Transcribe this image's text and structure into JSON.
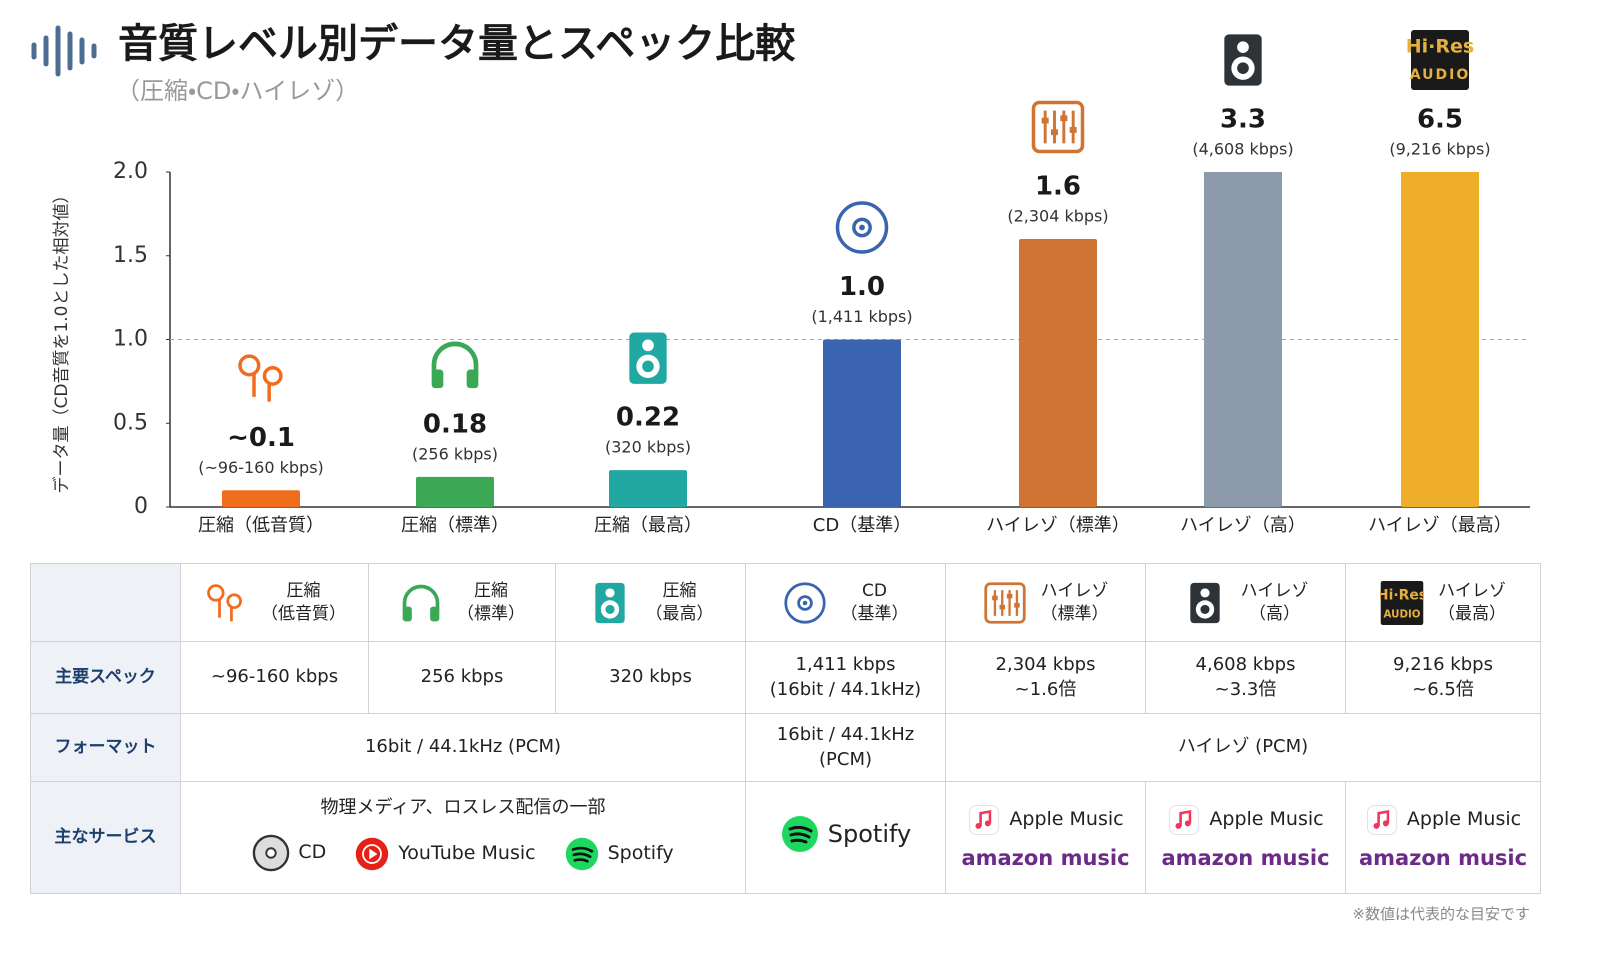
{
  "header": {
    "title": "音質レベル別データ量とスペック比較",
    "subtitle": "（圧縮・CD・ハイレゾ）"
  },
  "badge": {
    "top": "Hi·Res",
    "bottom": "AUDIO"
  },
  "chart_data": {
    "type": "bar",
    "y_label": "データ量（CD音質を1.0とした相対値）",
    "categories": [
      "圧縮（低音質）",
      "圧縮（標準）",
      "圧縮（最高）",
      "CD（基準）",
      "ハイレゾ（標準）",
      "ハイレゾ（高）",
      "ハイレゾ（最高）"
    ],
    "values": [
      0.1,
      0.18,
      0.22,
      1,
      1.6,
      3.3,
      6.5
    ],
    "value_labels": [
      "~0.1",
      "0.18",
      "0.22",
      "1.0",
      "1.6",
      "3.3",
      "6.5"
    ],
    "rates": [
      "(~96-160 kbps)",
      "(256 kbps)",
      "(320 kbps)",
      "(1,411 kbps)",
      "(2,304 kbps)",
      "(4,608 kbps)",
      "(9,216 kbps)"
    ],
    "colors": [
      "#f26c1d",
      "#3aa855",
      "#22a8a3",
      "#3a64b0",
      "#cf7433",
      "#8c9aab",
      "#eeae2a"
    ],
    "ylim": [
      0,
      2
    ],
    "yticks": [
      0,
      0.5,
      {
        "value": 1,
        "label": "1.0"
      },
      1.5,
      {
        "value": 2,
        "label": "2.0"
      }
    ],
    "reference_line": 1
  },
  "table": {
    "header": [
      [
        "圧縮",
        "（低音質）"
      ],
      [
        "圧縮",
        "（標準）"
      ],
      [
        "圧縮",
        "（最高）"
      ],
      [
        "CD",
        "（基準）"
      ],
      [
        "ハイレゾ",
        "（標準）"
      ],
      [
        "ハイレゾ",
        "（高）"
      ],
      [
        "ハイレゾ",
        "（最高）"
      ]
    ],
    "row_labels": [
      "主要スペック",
      "フォーマット",
      "主なサービス"
    ],
    "spec": [
      [
        "~96-160 kbps"
      ],
      [
        "256 kbps"
      ],
      [
        "320 kbps"
      ],
      [
        "1,411 kbps",
        "(16bit / 44.1kHz)"
      ],
      [
        "2,304 kbps",
        "~1.6倍"
      ],
      [
        "4,608 kbps",
        "~3.3倍"
      ],
      [
        "9,216 kbps",
        "~6.5倍"
      ]
    ],
    "format": [
      [
        "16bit / 44.1kHz (PCM)"
      ],
      [
        "16bit / 44.1kHz",
        "(PCM)"
      ],
      [
        "ハイレゾ (PCM)"
      ]
    ],
    "services": {
      "compressed": {
        "title": "物理メディア、ロスレス配信の一部",
        "items": [
          "CD",
          "YouTube Music",
          "Spotify"
        ]
      },
      "cd": "Spotify",
      "hires": [
        [
          "Apple Music",
          "amazon music"
        ],
        [
          "Apple Music",
          "amazon music"
        ],
        [
          "Apple Music",
          "amazon music"
        ]
      ]
    }
  },
  "footnote": "※数値は代表的な目安です"
}
